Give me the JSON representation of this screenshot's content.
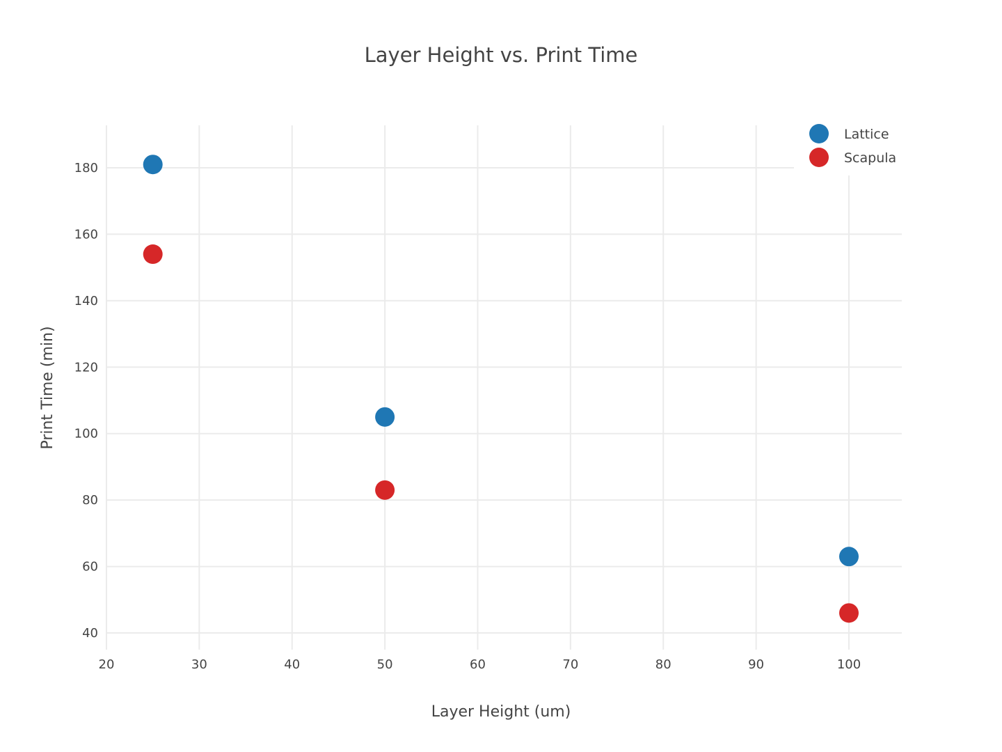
{
  "chart_data": {
    "type": "scatter",
    "title": "Layer Height vs. Print Time",
    "xlabel": "Layer Height (um)",
    "ylabel": "Print Time (min)",
    "xlim": [
      20,
      105
    ],
    "ylim": [
      35,
      192
    ],
    "x_ticks": [
      20,
      30,
      40,
      50,
      60,
      70,
      80,
      90,
      100
    ],
    "y_ticks": [
      40,
      60,
      80,
      100,
      120,
      140,
      160,
      180
    ],
    "grid": true,
    "legend_position": "top-right",
    "series": [
      {
        "name": "Lattice",
        "color": "#1f77b4",
        "points": [
          {
            "x": 25,
            "y": 181
          },
          {
            "x": 50,
            "y": 105
          },
          {
            "x": 100,
            "y": 63
          }
        ]
      },
      {
        "name": "Scapula",
        "color": "#d62728",
        "points": [
          {
            "x": 25,
            "y": 154
          },
          {
            "x": 50,
            "y": 83
          },
          {
            "x": 100,
            "y": 46
          }
        ]
      }
    ]
  }
}
